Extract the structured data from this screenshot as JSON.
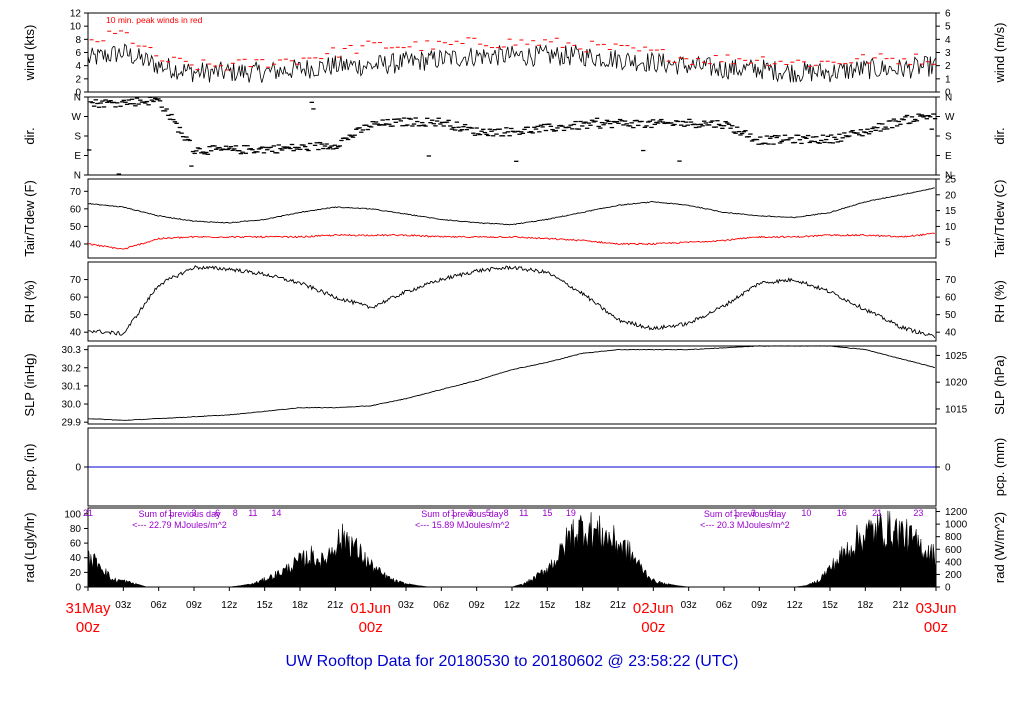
{
  "title": "UW Rooftop Data for 20180530  to  20180602 @ 23:58:22  (UTC)",
  "colors": {
    "trace": "#000000",
    "peak_wind": "#ff0000",
    "dewpoint": "#ff0000",
    "precip_line": "#0000cc",
    "annotation": "#9900cc",
    "date_label": "#ff0000",
    "title": "#0000cc"
  },
  "x_axis": {
    "hour_ticks": [
      "03z",
      "06z",
      "09z",
      "12z",
      "15z",
      "18z",
      "21z",
      "03z",
      "06z",
      "09z",
      "12z",
      "15z",
      "18z",
      "21z",
      "03z",
      "06z",
      "09z",
      "12z",
      "15z",
      "18z",
      "21z"
    ],
    "day_labels": [
      {
        "date": "31May",
        "hour": "00z"
      },
      {
        "date": "01Jun",
        "hour": "00z"
      },
      {
        "date": "02Jun",
        "hour": "00z"
      },
      {
        "date": "03Jun",
        "hour": "00z"
      }
    ]
  },
  "chart_data": [
    {
      "type": "line",
      "panel": "wind",
      "ylabel_left": "wind (kts)",
      "ylabel_right": "wind (m/s)",
      "left_ticks": [
        "0",
        "2",
        "4",
        "6",
        "8",
        "10",
        "12"
      ],
      "right_ticks": [
        "0",
        "1",
        "2",
        "3",
        "4",
        "5",
        "6"
      ],
      "ylim": [
        0,
        12
      ],
      "annotation": "10 min. peak winds in red",
      "hours": [
        0,
        3,
        6,
        9,
        12,
        15,
        18,
        21,
        24,
        27,
        30,
        33,
        36,
        39,
        42,
        45,
        48,
        51,
        54,
        57,
        60,
        63,
        66,
        69,
        72
      ],
      "series": [
        {
          "key": "wind",
          "values": [
            5,
            6,
            4,
            3,
            3,
            3,
            3.5,
            4,
            4,
            4.5,
            5,
            5.5,
            5.5,
            5.5,
            5.5,
            5,
            4.5,
            4,
            3.5,
            3.5,
            3,
            3,
            3.5,
            3.5,
            4
          ]
        },
        {
          "key": "peak_wind",
          "values": [
            7.5,
            9,
            5,
            4,
            4,
            4.5,
            5,
            6,
            7,
            7,
            7,
            7.5,
            7.5,
            7.5,
            7,
            6.5,
            6,
            5,
            5,
            5,
            4.5,
            4.5,
            5,
            5,
            5
          ]
        }
      ]
    },
    {
      "type": "scatter",
      "panel": "direction",
      "ylabel_left": "dir.",
      "ylabel_right": "dir.",
      "left_ticks": [
        "N",
        "E",
        "S",
        "W",
        "N"
      ],
      "right_ticks": [
        "N",
        "E",
        "S",
        "W",
        "N"
      ],
      "ylim": [
        0,
        360
      ],
      "hours": [
        0,
        3,
        6,
        9,
        12,
        15,
        18,
        21,
        24,
        27,
        30,
        33,
        36,
        39,
        42,
        45,
        48,
        51,
        54,
        57,
        60,
        63,
        66,
        69,
        72
      ],
      "values": [
        330,
        335,
        345,
        115,
        115,
        120,
        125,
        140,
        230,
        245,
        245,
        200,
        200,
        215,
        230,
        240,
        235,
        240,
        235,
        160,
        165,
        165,
        200,
        250,
        280
      ]
    },
    {
      "type": "line",
      "panel": "temperature",
      "ylabel_left": "Tair/Tdew (F)",
      "ylabel_right": "Tair/Tdew (C)",
      "left_ticks": [
        "40",
        "50",
        "60",
        "70"
      ],
      "right_ticks": [
        "5",
        "10",
        "15",
        "20",
        "25"
      ],
      "ylim": [
        32,
        77
      ],
      "hours": [
        0,
        3,
        6,
        9,
        12,
        15,
        18,
        21,
        24,
        27,
        30,
        33,
        36,
        39,
        42,
        45,
        48,
        51,
        54,
        57,
        60,
        63,
        66,
        69,
        72
      ],
      "series": [
        {
          "key": "air_temp",
          "values": [
            63,
            61,
            56,
            53,
            52,
            54,
            58,
            61,
            60,
            57,
            54,
            52,
            51,
            54,
            58,
            62,
            64,
            62,
            58,
            56,
            55,
            58,
            64,
            68,
            72
          ]
        },
        {
          "key": "dew_point",
          "values": [
            40,
            37,
            43,
            44,
            44,
            44,
            44,
            45,
            45,
            45,
            44,
            44,
            44,
            43,
            42,
            40,
            40,
            41,
            42,
            44,
            44,
            45,
            45,
            44,
            46
          ]
        }
      ]
    },
    {
      "type": "line",
      "panel": "humidity",
      "ylabel_left": "RH (%)",
      "ylabel_right": "RH (%)",
      "left_ticks": [
        "40",
        "50",
        "60",
        "70"
      ],
      "right_ticks": [
        "40",
        "50",
        "60",
        "70"
      ],
      "ylim": [
        35,
        80
      ],
      "hours": [
        0,
        3,
        6,
        9,
        12,
        15,
        18,
        21,
        24,
        27,
        30,
        33,
        36,
        39,
        42,
        45,
        48,
        51,
        54,
        57,
        60,
        63,
        66,
        69,
        72
      ],
      "values": [
        41,
        39,
        67,
        77,
        76,
        73,
        68,
        60,
        54,
        63,
        70,
        75,
        77,
        74,
        62,
        47,
        42,
        45,
        55,
        68,
        70,
        63,
        53,
        43,
        37
      ]
    },
    {
      "type": "line",
      "panel": "pressure",
      "ylabel_left": "SLP (inHg)",
      "ylabel_right": "SLP (hPa)",
      "left_ticks": [
        "29.9",
        "30.0",
        "30.1",
        "30.2",
        "30.3"
      ],
      "right_ticks": [
        "1015",
        "1020",
        "1025"
      ],
      "ylim": [
        29.89,
        30.32
      ],
      "hours": [
        0,
        3,
        6,
        9,
        12,
        15,
        18,
        21,
        24,
        27,
        30,
        33,
        36,
        39,
        42,
        45,
        48,
        51,
        54,
        57,
        60,
        63,
        66,
        69,
        72
      ],
      "values": [
        29.92,
        29.91,
        29.92,
        29.93,
        29.94,
        29.96,
        29.98,
        29.98,
        29.99,
        30.03,
        30.08,
        30.13,
        30.19,
        30.23,
        30.28,
        30.3,
        30.3,
        30.3,
        30.31,
        30.32,
        30.32,
        30.32,
        30.3,
        30.25,
        30.2
      ]
    },
    {
      "type": "line",
      "panel": "precipitation",
      "ylabel_left": "pcp. (in)",
      "ylabel_right": "pcp. (mm)",
      "left_ticks": [
        "0"
      ],
      "right_ticks": [
        "0"
      ],
      "ylim": [
        -1,
        1
      ],
      "hours": [
        0,
        72
      ],
      "values": [
        0,
        0
      ]
    },
    {
      "type": "area",
      "panel": "radiation",
      "ylabel_left": "rad (Lgly/hr)",
      "ylabel_right": "rad (W/m^2)",
      "left_ticks": [
        "0",
        "20",
        "40",
        "60",
        "80",
        "100"
      ],
      "right_ticks": [
        "0",
        "200",
        "400",
        "600",
        "800",
        "1000",
        "1200"
      ],
      "ylim": [
        0,
        108
      ],
      "hours": [
        0,
        1,
        2,
        3,
        4,
        5,
        12,
        13,
        14,
        15,
        16,
        17,
        18,
        19,
        20,
        21,
        22,
        23,
        24,
        25,
        26,
        27,
        28,
        29,
        36,
        37,
        38,
        39,
        40,
        41,
        42,
        43,
        44,
        45,
        46,
        47,
        48,
        49,
        50,
        51,
        52,
        53,
        60,
        61,
        62,
        63,
        64,
        65,
        66,
        67,
        68,
        69,
        70,
        71,
        72
      ],
      "values": [
        45,
        38,
        12,
        10,
        5,
        0,
        0,
        2,
        5,
        12,
        20,
        30,
        42,
        50,
        40,
        70,
        80,
        55,
        35,
        20,
        10,
        5,
        2,
        0,
        0,
        5,
        15,
        30,
        50,
        85,
        95,
        90,
        80,
        70,
        55,
        30,
        10,
        5,
        2,
        0,
        0,
        0,
        0,
        2,
        10,
        30,
        50,
        70,
        85,
        92,
        92,
        88,
        75,
        60,
        50
      ],
      "day_summaries": [
        {
          "text": "Sum of previous day",
          "value": "<--- 22.79 MJoules/m^2"
        },
        {
          "text": "Sum of previous day",
          "value": "<--- 15.89 MJoules/m^2"
        },
        {
          "text": "Sum of previous day",
          "value": "<--- 20.3 MJoules/m^2"
        }
      ],
      "hour_markers": [
        {
          "hour": 0,
          "label": "21"
        },
        {
          "hour": 7,
          "label": "1"
        },
        {
          "hour": 9,
          "label": "3"
        },
        {
          "hour": 11,
          "label": "6"
        },
        {
          "hour": 12.5,
          "label": "8"
        },
        {
          "hour": 14,
          "label": "11"
        },
        {
          "hour": 16,
          "label": "14"
        },
        {
          "hour": 31,
          "label": "1"
        },
        {
          "hour": 32.5,
          "label": "3"
        },
        {
          "hour": 34,
          "label": "5"
        },
        {
          "hour": 35.5,
          "label": "8"
        },
        {
          "hour": 37,
          "label": "11"
        },
        {
          "hour": 39,
          "label": "15"
        },
        {
          "hour": 41,
          "label": "19"
        },
        {
          "hour": 55,
          "label": "1"
        },
        {
          "hour": 56.5,
          "label": "3"
        },
        {
          "hour": 58,
          "label": "6"
        },
        {
          "hour": 61,
          "label": "10"
        },
        {
          "hour": 64,
          "label": "16"
        },
        {
          "hour": 67,
          "label": "21"
        },
        {
          "hour": 70.5,
          "label": "23"
        }
      ]
    }
  ]
}
